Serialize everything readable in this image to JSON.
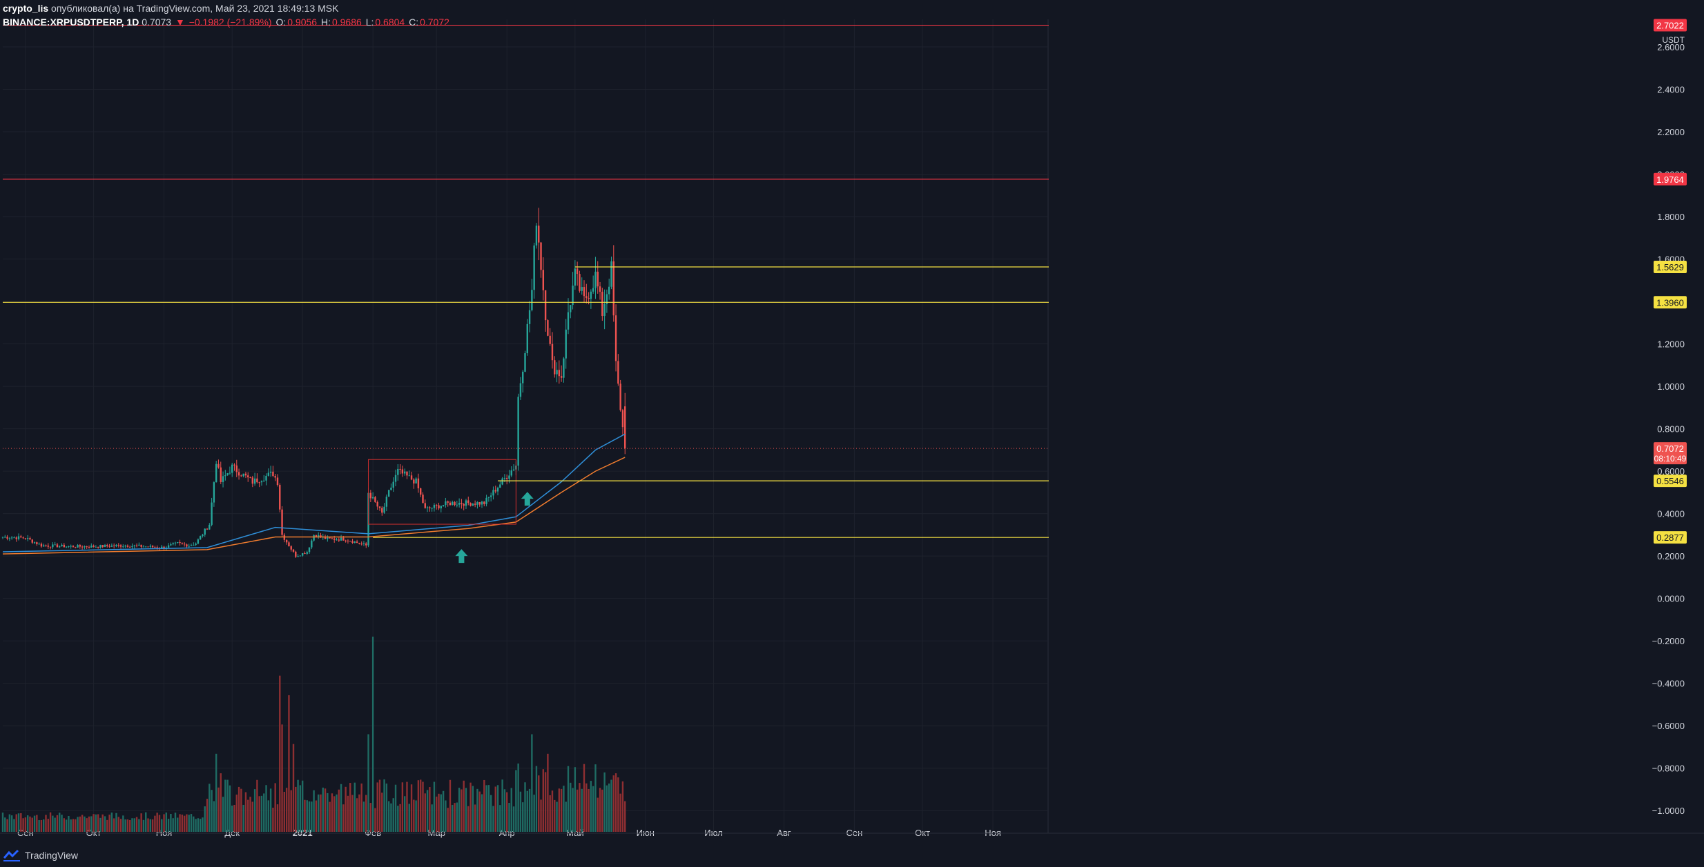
{
  "header": {
    "line1_user": "crypto_lis",
    "line1_rest": "опубликовал(а) на TradingView.com, Май 23, 2021 18:49:13 MSK",
    "symbol": "BINANCE:XRPUSDTPERP, 1D",
    "last": "0.7073",
    "change": "−0.1982 (−21.89%)",
    "open_label": "O:",
    "open": "0.9056",
    "high_label": "H:",
    "high": "0.9686",
    "low_label": "L:",
    "low": "0.6804",
    "close_label": "C:",
    "close": "0.7072",
    "arrow": "▼"
  },
  "footer": {
    "brand": "TradingView"
  },
  "colors": {
    "bg": "#131722",
    "grid": "#1e222d",
    "up": "#26a69a",
    "down": "#ef5350",
    "up_vol": "#1f6b63",
    "down_vol": "#8e2f32",
    "ma_blue": "#2f8fd8",
    "ma_orange": "#f07c2e",
    "resistance": "#f23645",
    "support": "#f5e142",
    "arrow": "#26a69a",
    "box": "#d32f2f"
  },
  "chart_data": {
    "type": "candlestick",
    "unit": "USDT",
    "y_ticks": [
      "2.6000",
      "2.4000",
      "2.2000",
      "2.0000",
      "1.8000",
      "1.6000",
      "1.4000",
      "1.2000",
      "1.0000",
      "0.8000",
      "0.6000",
      "0.4000",
      "0.2000",
      "0.0000",
      "−0.2000",
      "−0.4000",
      "−0.6000",
      "−0.8000",
      "−1.0000"
    ],
    "y_range": [
      -1.1,
      2.73
    ],
    "x_labels": [
      "Сен",
      "Окт",
      "Ноя",
      "Дек",
      "2021",
      "Фев",
      "Мар",
      "Апр",
      "Май",
      "Июн",
      "Июл",
      "Авг",
      "Сен",
      "Окт",
      "Ноя"
    ],
    "time_range": [
      "2020-08-22",
      "2021-11-25"
    ],
    "last_price": "0.7072",
    "countdown": "08:10:49",
    "horizontal_lines": [
      {
        "value": 2.7022,
        "label": "2.7022",
        "kind": "resistance"
      },
      {
        "value": 1.9764,
        "label": "1.9764",
        "kind": "resistance"
      },
      {
        "value": 1.5629,
        "label": "1.5629",
        "kind": "support",
        "from": "2021-05-01"
      },
      {
        "value": 1.396,
        "label": "1.3960",
        "kind": "support"
      },
      {
        "value": 0.5546,
        "label": "0.5546",
        "kind": "support",
        "from": "2021-03-28"
      },
      {
        "value": 0.2877,
        "label": "0.2877",
        "kind": "support",
        "from": "2021-02-01"
      }
    ],
    "rectangle": {
      "from": "2021-01-30",
      "to": "2021-04-05",
      "low": 0.35,
      "high": 0.655
    },
    "arrows": [
      {
        "date": "2021-03-12",
        "value": 0.2
      },
      {
        "date": "2021-04-10",
        "value": 0.47
      }
    ],
    "anchors": [
      [
        "2020-08-22",
        0.29
      ],
      [
        "2020-09-01",
        0.285
      ],
      [
        "2020-09-08",
        0.25
      ],
      [
        "2020-09-20",
        0.245
      ],
      [
        "2020-10-01",
        0.245
      ],
      [
        "2020-10-15",
        0.25
      ],
      [
        "2020-11-01",
        0.24
      ],
      [
        "2020-11-07",
        0.26
      ],
      [
        "2020-11-12",
        0.25
      ],
      [
        "2020-11-15",
        0.26
      ],
      [
        "2020-11-21",
        0.35
      ],
      [
        "2020-11-24",
        0.65
      ],
      [
        "2020-11-26",
        0.55
      ],
      [
        "2020-12-01",
        0.62
      ],
      [
        "2020-12-10",
        0.55
      ],
      [
        "2020-12-19",
        0.59
      ],
      [
        "2020-12-21",
        0.55
      ],
      [
        "2020-12-23",
        0.3
      ],
      [
        "2020-12-29",
        0.2
      ],
      [
        "2021-01-03",
        0.22
      ],
      [
        "2021-01-06",
        0.3
      ],
      [
        "2021-01-12",
        0.28
      ],
      [
        "2021-01-20",
        0.28
      ],
      [
        "2021-01-29",
        0.25
      ],
      [
        "2021-01-30",
        0.5
      ],
      [
        "2021-02-05",
        0.4
      ],
      [
        "2021-02-08",
        0.5
      ],
      [
        "2021-02-12",
        0.6
      ],
      [
        "2021-02-20",
        0.55
      ],
      [
        "2021-02-24",
        0.42
      ],
      [
        "2021-03-07",
        0.45
      ],
      [
        "2021-03-22",
        0.45
      ],
      [
        "2021-04-05",
        0.63
      ],
      [
        "2021-04-06",
        0.95
      ],
      [
        "2021-04-08",
        1.1
      ],
      [
        "2021-04-12",
        1.45
      ],
      [
        "2021-04-14",
        1.8
      ],
      [
        "2021-04-18",
        1.35
      ],
      [
        "2021-04-21",
        1.1
      ],
      [
        "2021-04-25",
        1.05
      ],
      [
        "2021-04-28",
        1.35
      ],
      [
        "2021-05-01",
        1.52
      ],
      [
        "2021-05-05",
        1.4
      ],
      [
        "2021-05-10",
        1.52
      ],
      [
        "2021-05-13",
        1.35
      ],
      [
        "2021-05-17",
        1.55
      ],
      [
        "2021-05-19",
        1.1
      ],
      [
        "2021-05-21",
        0.9
      ],
      [
        "2021-05-23",
        0.7072
      ]
    ],
    "ma_blue": [
      [
        "2020-08-22",
        0.22
      ],
      [
        "2020-11-20",
        0.24
      ],
      [
        "2020-12-20",
        0.335
      ],
      [
        "2021-01-30",
        0.305
      ],
      [
        "2021-03-15",
        0.345
      ],
      [
        "2021-04-05",
        0.385
      ],
      [
        "2021-04-25",
        0.55
      ],
      [
        "2021-05-10",
        0.7
      ],
      [
        "2021-05-23",
        0.775
      ]
    ],
    "ma_orange": [
      [
        "2020-08-22",
        0.21
      ],
      [
        "2020-11-20",
        0.23
      ],
      [
        "2020-12-20",
        0.29
      ],
      [
        "2021-01-30",
        0.29
      ],
      [
        "2021-03-15",
        0.33
      ],
      [
        "2021-04-05",
        0.36
      ],
      [
        "2021-04-25",
        0.5
      ],
      [
        "2021-05-10",
        0.6
      ],
      [
        "2021-05-23",
        0.665
      ]
    ],
    "volume_spikes": [
      [
        "2020-11-24",
        0.4
      ],
      [
        "2020-11-26",
        0.3
      ],
      [
        "2020-12-22",
        0.8
      ],
      [
        "2020-12-23",
        0.55
      ],
      [
        "2020-12-26",
        0.7
      ],
      [
        "2020-12-28",
        0.45
      ],
      [
        "2021-01-30",
        0.5
      ],
      [
        "2021-02-01",
        1.0
      ],
      [
        "2021-04-06",
        0.35
      ],
      [
        "2021-04-12",
        0.5
      ],
      [
        "2021-04-19",
        0.4
      ],
      [
        "2021-05-19",
        0.3
      ]
    ]
  }
}
